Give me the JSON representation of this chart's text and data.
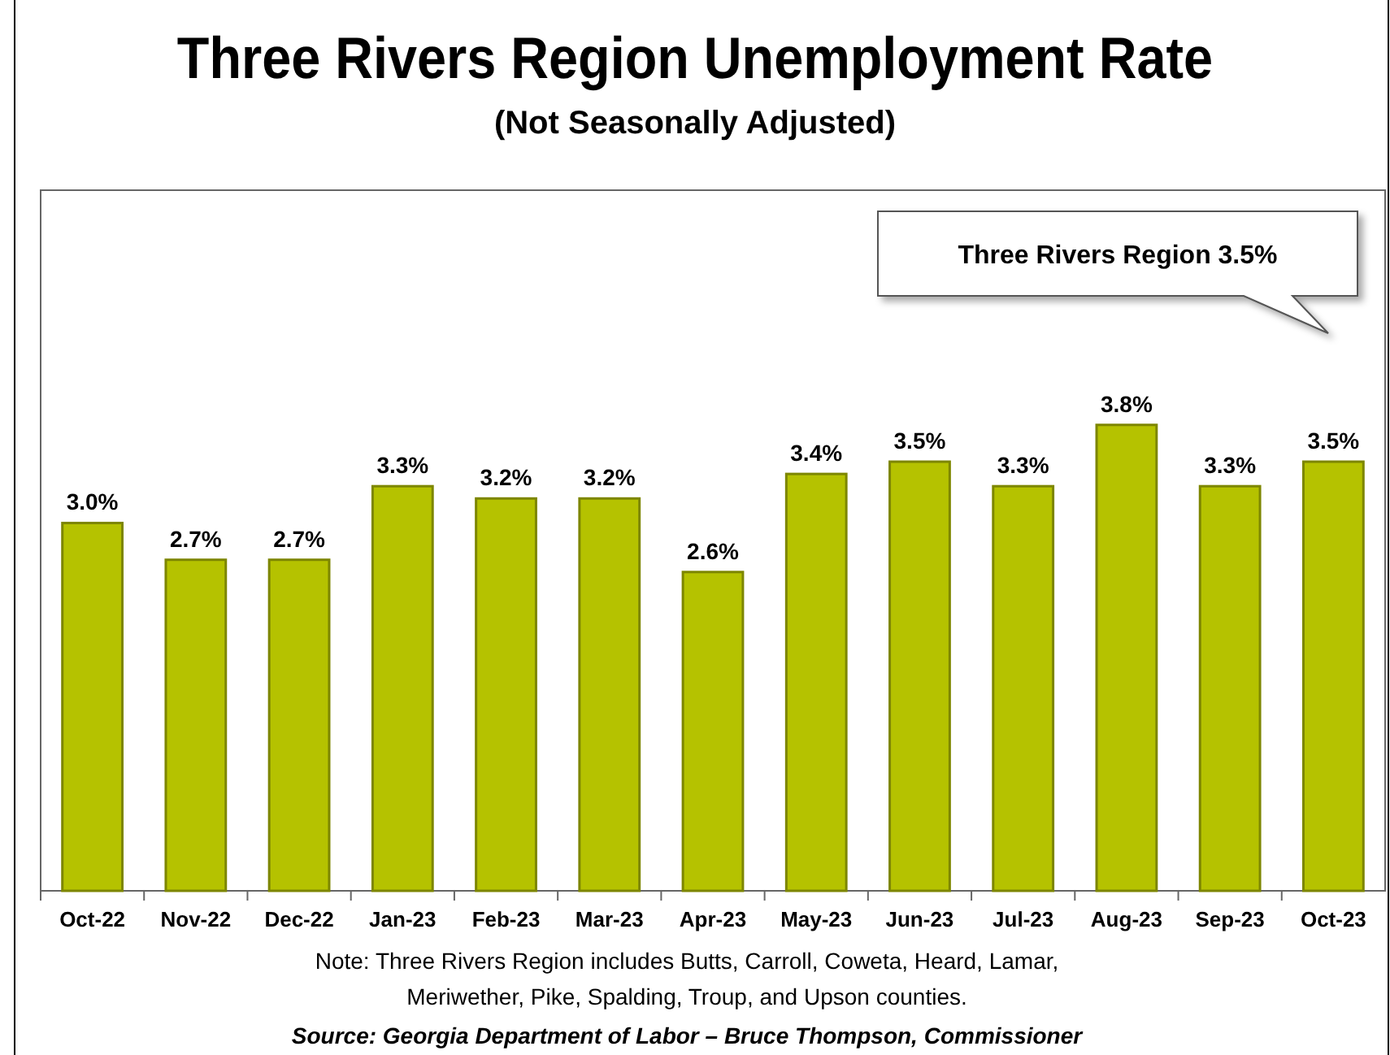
{
  "chart_data": {
    "type": "bar",
    "title": "Three Rivers Region Unemployment Rate",
    "subtitle": "(Not Seasonally Adjusted)",
    "categories": [
      "Oct-22",
      "Nov-22",
      "Dec-22",
      "Jan-23",
      "Feb-23",
      "Mar-23",
      "Apr-23",
      "May-23",
      "Jun-23",
      "Jul-23",
      "Aug-23",
      "Sep-23",
      "Oct-23"
    ],
    "values": [
      3.0,
      2.7,
      2.7,
      3.3,
      3.2,
      3.2,
      2.6,
      3.4,
      3.5,
      3.3,
      3.8,
      3.3,
      3.5
    ],
    "value_labels": [
      "3.0%",
      "2.7%",
      "2.7%",
      "3.3%",
      "3.2%",
      "3.2%",
      "2.6%",
      "3.4%",
      "3.5%",
      "3.3%",
      "3.8%",
      "3.3%",
      "3.5%"
    ],
    "color": "#b5c200",
    "annotations": [
      "Three Rivers Region 3.5%",
      "Note: Three Rivers Region includes Butts, Carroll, Coweta, Heard, Lamar,",
      "Meriwether, Pike, Spalding, Troup, and Upson counties.",
      "Source:  Georgia Department of Labor – Bruce Thompson, Commissioner"
    ]
  }
}
